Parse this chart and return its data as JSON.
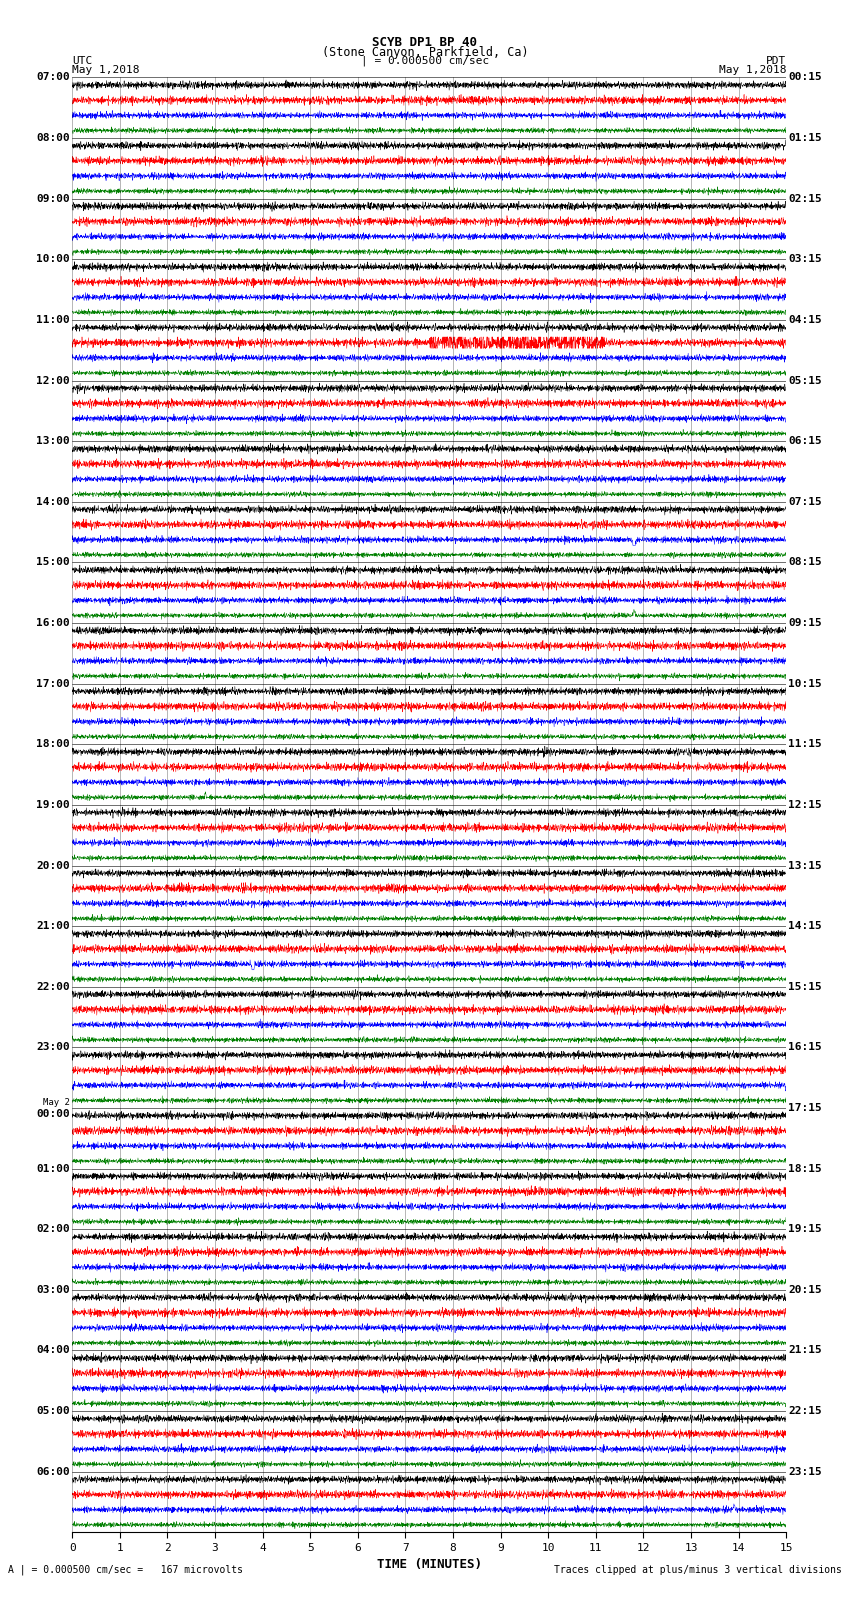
{
  "title_line1": "SCYB DP1 BP 40",
  "title_line2": "(Stone Canyon, Parkfield, Ca)",
  "scale_text": "| = 0.000500 cm/sec",
  "left_label": "UTC",
  "right_label": "PDT",
  "date_left": "May 1,2018",
  "date_right": "May 1,2018",
  "bottom_label": "TIME (MINUTES)",
  "bottom_note_left": "A | = 0.000500 cm/sec =   167 microvolts",
  "bottom_note_right": "Traces clipped at plus/minus 3 vertical divisions",
  "xlim": [
    0,
    15
  ],
  "xticks": [
    0,
    1,
    2,
    3,
    4,
    5,
    6,
    7,
    8,
    9,
    10,
    11,
    12,
    13,
    14,
    15
  ],
  "minutes_per_row": 15,
  "samples_per_minute": 200,
  "colors": [
    "black",
    "red",
    "blue",
    "green"
  ],
  "left_times": [
    "07:00",
    "08:00",
    "09:00",
    "10:00",
    "11:00",
    "12:00",
    "13:00",
    "14:00",
    "15:00",
    "16:00",
    "17:00",
    "18:00",
    "19:00",
    "20:00",
    "21:00",
    "22:00",
    "23:00",
    "May 2\n00:00",
    "01:00",
    "02:00",
    "03:00",
    "04:00",
    "05:00",
    "06:00"
  ],
  "right_times": [
    "00:15",
    "01:15",
    "02:15",
    "03:15",
    "04:15",
    "05:15",
    "06:15",
    "07:15",
    "08:15",
    "09:15",
    "10:15",
    "11:15",
    "12:15",
    "13:15",
    "14:15",
    "15:15",
    "16:15",
    "17:15",
    "18:15",
    "19:15",
    "20:15",
    "21:15",
    "22:15",
    "23:15"
  ],
  "num_rows": 24,
  "traces_per_row": 4,
  "fig_width": 8.5,
  "fig_height": 16.13,
  "amplitude_scale": 0.38,
  "clip_val": 1.0
}
